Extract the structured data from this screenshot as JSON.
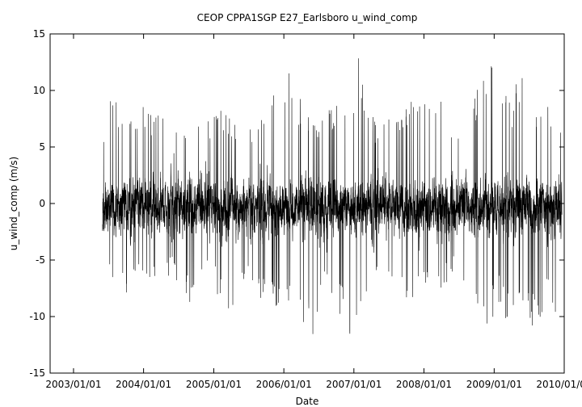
{
  "chart_data": {
    "type": "line",
    "title": "CEOP CPPA1SGP E27_Earlsboro  u_wind_comp",
    "xlabel": "Date",
    "ylabel": "u_wind_comp (m/s)",
    "ylim": [
      -15,
      15
    ],
    "xlim": [
      "2002/09/01",
      "2010/01/01"
    ],
    "y_ticks": [
      -15,
      -10,
      -5,
      0,
      5,
      10,
      15
    ],
    "x_ticks": [
      "2003/01/01",
      "2004/01/01",
      "2005/01/01",
      "2006/01/01",
      "2007/01/01",
      "2008/01/01",
      "2009/01/01",
      "2010/01/01"
    ],
    "grid": false,
    "legend": "none",
    "series_color": "#000000",
    "data_start": "2003/06/01",
    "data_end": "2009/12/20",
    "series": [
      {
        "x": [
          "2003/06/01",
          "2003/08/01",
          "2003/10/01",
          "2003/12/01",
          "2004/02/01",
          "2004/04/01",
          "2004/06/01",
          "2004/08/01",
          "2004/10/01",
          "2004/12/01",
          "2005/02/01",
          "2005/04/01",
          "2005/06/01",
          "2005/08/01",
          "2005/10/01",
          "2005/12/01",
          "2006/02/01",
          "2006/04/01",
          "2006/06/01",
          "2006/08/01",
          "2006/10/01",
          "2006/12/01",
          "2007/02/01",
          "2007/04/01",
          "2007/06/01",
          "2007/08/01",
          "2007/10/01",
          "2007/12/01",
          "2008/02/01",
          "2008/04/01",
          "2008/06/01",
          "2008/08/01",
          "2008/10/01",
          "2008/12/01",
          "2009/02/01",
          "2009/04/01",
          "2009/06/01",
          "2009/08/01",
          "2009/10/01",
          "2009/12/01"
        ],
        "max": [
          7.5,
          10.0,
          7.0,
          9.5,
          8.0,
          8.5,
          6.0,
          7.0,
          8.0,
          7.5,
          9.5,
          8.0,
          6.5,
          7.0,
          9.0,
          10.5,
          12.3,
          9.0,
          7.0,
          8.0,
          10.0,
          9.0,
          14.0,
          8.0,
          7.0,
          8.0,
          9.0,
          10.5,
          12.0,
          9.0,
          7.0,
          8.0,
          10.0,
          13.0,
          11.0,
          9.0,
          13.7,
          8.0,
          9.5,
          7.0
        ],
        "min": [
          -7.0,
          -6.5,
          -8.0,
          -7.5,
          -6.5,
          -8.0,
          -6.0,
          -9.2,
          -8.5,
          -7.0,
          -8.5,
          -9.8,
          -7.0,
          -8.0,
          -9.0,
          -10.0,
          -9.5,
          -10.5,
          -12.0,
          -8.0,
          -9.0,
          -11.8,
          -11.5,
          -8.5,
          -7.5,
          -7.0,
          -9.0,
          -8.0,
          -8.5,
          -7.5,
          -6.5,
          -8.0,
          -10.5,
          -11.0,
          -9.0,
          -12.3,
          -10.0,
          -11.5,
          -9.5,
          -10.4
        ]
      }
    ]
  }
}
